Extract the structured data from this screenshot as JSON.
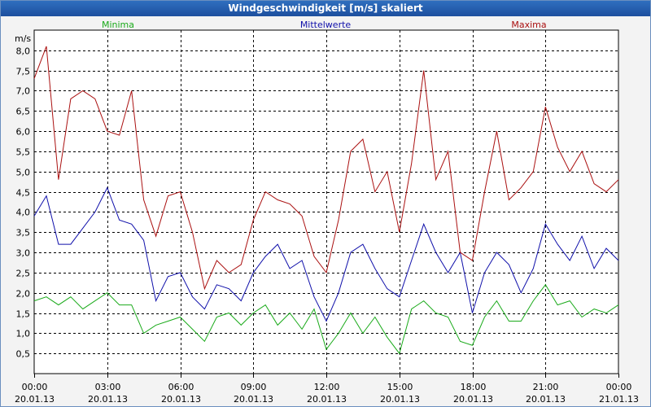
{
  "window": {
    "title": "Windgeschwindigkeit [m/s] skaliert"
  },
  "chart_data": {
    "type": "line",
    "title": "Windgeschwindigkeit [m/s] skaliert",
    "ylabel": "m/s",
    "ylim": [
      0,
      8.5
    ],
    "yticks": [
      0.5,
      1.0,
      1.5,
      2.0,
      2.5,
      3.0,
      3.5,
      4.0,
      4.5,
      5.0,
      5.5,
      6.0,
      6.5,
      7.0,
      7.5,
      8.0
    ],
    "ytick_labels": [
      "0,5",
      "1,0",
      "1,5",
      "2,0",
      "2,5",
      "3,0",
      "3,5",
      "4,0",
      "4,5",
      "5,0",
      "5,5",
      "6,0",
      "6,5",
      "7,0",
      "7,5",
      "8,0"
    ],
    "xlim": [
      0,
      24
    ],
    "xticks": [
      {
        "hour": 0,
        "time": "00:00",
        "date": "20.01.13"
      },
      {
        "hour": 3,
        "time": "03:00",
        "date": "20.01.13"
      },
      {
        "hour": 6,
        "time": "06:00",
        "date": "20.01.13"
      },
      {
        "hour": 9,
        "time": "09:00",
        "date": "20.01.13"
      },
      {
        "hour": 12,
        "time": "12:00",
        "date": "20.01.13"
      },
      {
        "hour": 15,
        "time": "15:00",
        "date": "20.01.13"
      },
      {
        "hour": 18,
        "time": "18:00",
        "date": "20.01.13"
      },
      {
        "hour": 21,
        "time": "21:00",
        "date": "20.01.13"
      },
      {
        "hour": 24,
        "time": "00:00",
        "date": "21.01.13"
      }
    ],
    "grid": true,
    "series": [
      {
        "name": "Minima",
        "color": "#1aaa1a",
        "x": [
          0,
          0.5,
          1,
          1.5,
          2,
          2.5,
          3,
          3.5,
          4,
          4.5,
          5,
          5.5,
          6,
          6.5,
          7,
          7.5,
          8,
          8.5,
          9,
          9.5,
          10,
          10.5,
          11,
          11.5,
          12,
          12.5,
          13,
          13.5,
          14,
          14.5,
          15,
          15.5,
          16,
          16.5,
          17,
          17.5,
          18,
          18.5,
          19,
          19.5,
          20,
          20.5,
          21,
          21.5,
          22,
          22.5,
          23,
          23.5,
          24
        ],
        "values": [
          1.8,
          1.9,
          1.7,
          1.9,
          1.6,
          1.8,
          2.0,
          1.7,
          1.7,
          1.0,
          1.2,
          1.3,
          1.4,
          1.1,
          0.8,
          1.4,
          1.5,
          1.2,
          1.5,
          1.7,
          1.2,
          1.5,
          1.1,
          1.6,
          0.6,
          1.0,
          1.5,
          1.0,
          1.4,
          0.9,
          0.5,
          1.6,
          1.8,
          1.5,
          1.4,
          0.8,
          0.7,
          1.4,
          1.8,
          1.3,
          1.3,
          1.8,
          2.2,
          1.7,
          1.8,
          1.4,
          1.6,
          1.5,
          1.7
        ]
      },
      {
        "name": "Mittelwerte",
        "color": "#1010aa",
        "x": [
          0,
          0.5,
          1,
          1.5,
          2,
          2.5,
          3,
          3.5,
          4,
          4.5,
          5,
          5.5,
          6,
          6.5,
          7,
          7.5,
          8,
          8.5,
          9,
          9.5,
          10,
          10.5,
          11,
          11.5,
          12,
          12.5,
          13,
          13.5,
          14,
          14.5,
          15,
          15.5,
          16,
          16.5,
          17,
          17.5,
          18,
          18.5,
          19,
          19.5,
          20,
          20.5,
          21,
          21.5,
          22,
          22.5,
          23,
          23.5,
          24
        ],
        "values": [
          3.9,
          4.4,
          3.2,
          3.2,
          3.6,
          4.0,
          4.6,
          3.8,
          3.7,
          3.3,
          1.8,
          2.4,
          2.5,
          1.9,
          1.6,
          2.2,
          2.1,
          1.8,
          2.5,
          2.9,
          3.2,
          2.6,
          2.8,
          1.9,
          1.3,
          2.0,
          3.0,
          3.2,
          2.6,
          2.1,
          1.9,
          2.8,
          3.7,
          3.0,
          2.5,
          3.0,
          1.5,
          2.5,
          3.0,
          2.7,
          2.0,
          2.6,
          3.7,
          3.2,
          2.8,
          3.4,
          2.6,
          3.1,
          2.8
        ]
      },
      {
        "name": "Maxima",
        "color": "#aa1010",
        "x": [
          0,
          0.5,
          1,
          1.5,
          2,
          2.5,
          3,
          3.5,
          4,
          4.5,
          5,
          5.5,
          6,
          6.5,
          7,
          7.5,
          8,
          8.5,
          9,
          9.5,
          10,
          10.5,
          11,
          11.5,
          12,
          12.5,
          13,
          13.5,
          14,
          14.5,
          15,
          15.5,
          16,
          16.5,
          17,
          17.5,
          18,
          18.5,
          19,
          19.5,
          20,
          20.5,
          21,
          21.5,
          22,
          22.5,
          23,
          23.5,
          24
        ],
        "values": [
          7.3,
          8.1,
          4.8,
          6.8,
          7.0,
          6.8,
          6.0,
          5.9,
          7.0,
          4.3,
          3.4,
          4.4,
          4.5,
          3.5,
          2.1,
          2.8,
          2.5,
          2.7,
          3.8,
          4.5,
          4.3,
          4.2,
          3.9,
          2.9,
          2.5,
          3.8,
          5.5,
          5.8,
          4.5,
          5.0,
          3.5,
          5.2,
          7.5,
          4.8,
          5.5,
          3.0,
          2.8,
          4.5,
          6.0,
          4.3,
          4.6,
          5.0,
          6.6,
          5.6,
          5.0,
          5.5,
          4.7,
          4.5,
          4.8
        ]
      }
    ]
  }
}
